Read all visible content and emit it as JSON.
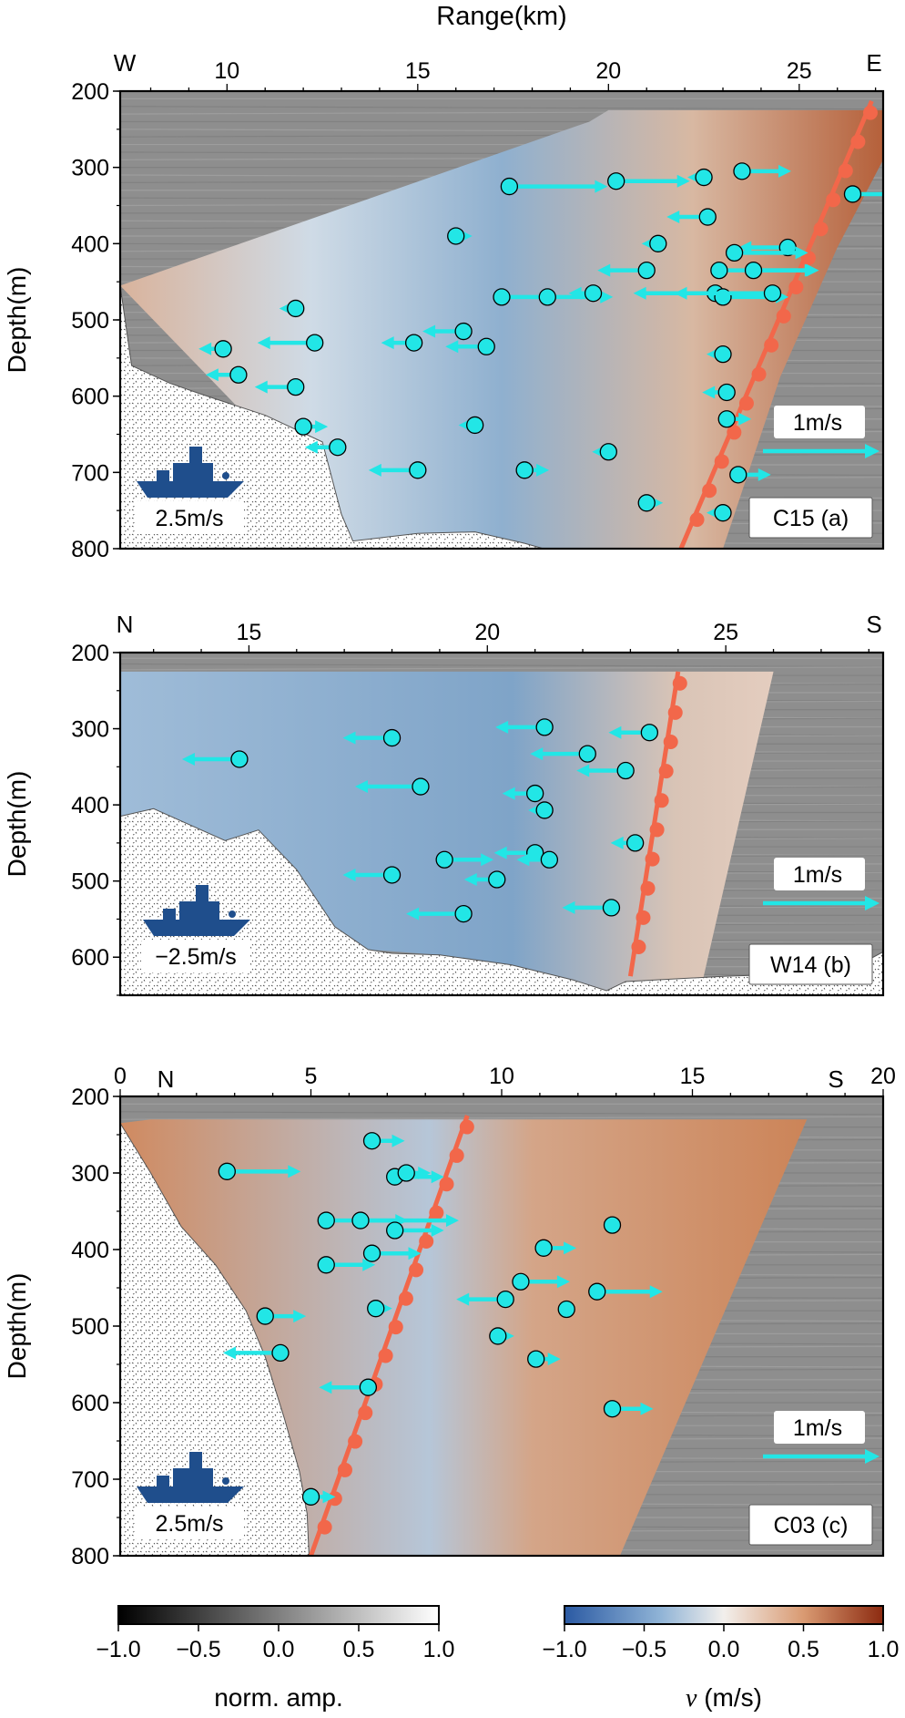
{
  "colors": {
    "arrow": "#22e6e6",
    "fault": "#f2674a",
    "boat": "#1f4e8c",
    "seafloor_fill": "#ffffff"
  },
  "chart_data": [
    {
      "id": "a",
      "type": "scatter",
      "x_axis_title": "Range(km)",
      "xlim": [
        7.2,
        27.2
      ],
      "xticks": [
        10,
        15,
        20,
        25
      ],
      "ylabel": "Depth(m)",
      "ylim": [
        800,
        200
      ],
      "yticks": [
        200,
        300,
        400,
        500,
        600,
        700,
        800
      ],
      "left_dir": "W",
      "right_dir": "E",
      "label": "C15 (a)",
      "scale_label": "1m/s",
      "boat_label": "2.5m/s",
      "data_overlay": "lr",
      "seafloor": [
        [
          7.2,
          455
        ],
        [
          7.5,
          560
        ],
        [
          8.5,
          583
        ],
        [
          9.3,
          597
        ],
        [
          11.0,
          625
        ],
        [
          12.5,
          660
        ],
        [
          13.0,
          755
        ],
        [
          13.3,
          790
        ],
        [
          15.0,
          780
        ],
        [
          16.5,
          778
        ],
        [
          17.8,
          793
        ],
        [
          18.3,
          800
        ],
        [
          7.2,
          800
        ]
      ],
      "coverage": [
        [
          7.2,
          455
        ],
        [
          19.5,
          240
        ],
        [
          20.0,
          225
        ],
        [
          27.2,
          225
        ],
        [
          27.2,
          290
        ],
        [
          26.0,
          405
        ],
        [
          24.5,
          575
        ],
        [
          23.0,
          800
        ],
        [
          18.3,
          800
        ],
        [
          13.3,
          790
        ],
        [
          13.0,
          755
        ]
      ],
      "fault": [
        [
          21.9,
          800
        ],
        [
          26.9,
          213
        ]
      ],
      "vectors": [
        [
          17.4,
          325,
          1.2
        ],
        [
          20.2,
          318,
          0.9
        ],
        [
          22.5,
          313,
          -0.2
        ],
        [
          23.5,
          305,
          0.6
        ],
        [
          22.6,
          365,
          -0.5
        ],
        [
          26.4,
          335,
          0.8
        ],
        [
          16.0,
          390,
          0.2
        ],
        [
          21.3,
          400,
          -0.2
        ],
        [
          24.7,
          405,
          -0.6
        ],
        [
          23.3,
          412,
          0.9
        ],
        [
          21.0,
          435,
          -0.6
        ],
        [
          22.9,
          435,
          1.2
        ],
        [
          23.8,
          435,
          0.8
        ],
        [
          17.2,
          470,
          0.7
        ],
        [
          18.4,
          470,
          0.8
        ],
        [
          19.6,
          465,
          -0.3
        ],
        [
          22.8,
          465,
          -1.0
        ],
        [
          23.0,
          470,
          0.8
        ],
        [
          24.3,
          465,
          -1.2
        ],
        [
          11.8,
          485,
          -0.2
        ],
        [
          16.2,
          515,
          -0.5
        ],
        [
          12.3,
          530,
          -0.7
        ],
        [
          14.9,
          530,
          -0.4
        ],
        [
          16.8,
          535,
          -0.5
        ],
        [
          23.0,
          545,
          -0.2
        ],
        [
          9.9,
          538,
          -0.3
        ],
        [
          10.3,
          572,
          -0.4
        ],
        [
          11.8,
          588,
          -0.5
        ],
        [
          23.1,
          595,
          -0.3
        ],
        [
          12.0,
          640,
          0.3
        ],
        [
          16.5,
          638,
          -0.2
        ],
        [
          23.1,
          630,
          0.3
        ],
        [
          12.9,
          667,
          -0.4
        ],
        [
          20.0,
          673,
          -0.2
        ],
        [
          15.0,
          697,
          -0.6
        ],
        [
          17.8,
          697,
          0.3
        ],
        [
          23.4,
          703,
          0.4
        ],
        [
          21.0,
          740,
          0.2
        ],
        [
          23.0,
          753,
          -0.2
        ]
      ]
    },
    {
      "id": "b",
      "type": "scatter",
      "xlim": [
        12.3,
        28.3
      ],
      "xticks": [
        15,
        20,
        25
      ],
      "ylabel": "Depth(m)",
      "ylim": [
        650,
        200
      ],
      "yticks": [
        200,
        300,
        400,
        500,
        600
      ],
      "left_dir": "N",
      "right_dir": "S",
      "label": "W14 (b)",
      "scale_label": "1m/s",
      "boat_label": "−2.5m/s",
      "data_overlay": "rl",
      "seafloor": [
        [
          12.3,
          415
        ],
        [
          13.0,
          405
        ],
        [
          14.5,
          447
        ],
        [
          15.2,
          433
        ],
        [
          16.0,
          485
        ],
        [
          16.8,
          560
        ],
        [
          17.5,
          590
        ],
        [
          18.0,
          595
        ],
        [
          19.0,
          597
        ],
        [
          20.5,
          610
        ],
        [
          21.8,
          630
        ],
        [
          22.5,
          644
        ],
        [
          22.9,
          632
        ],
        [
          25.0,
          625
        ],
        [
          27.5,
          620
        ],
        [
          28.3,
          593
        ],
        [
          28.3,
          650
        ],
        [
          12.3,
          650
        ]
      ],
      "coverage": [
        [
          12.3,
          225
        ],
        [
          26.0,
          225
        ],
        [
          24.5,
          635
        ],
        [
          22.9,
          632
        ],
        [
          22.5,
          644
        ],
        [
          21.8,
          630
        ],
        [
          20.5,
          610
        ],
        [
          19.0,
          597
        ],
        [
          17.5,
          590
        ],
        [
          16.8,
          560
        ],
        [
          16.0,
          485
        ],
        [
          15.2,
          433
        ],
        [
          14.5,
          447
        ],
        [
          13.0,
          405
        ],
        [
          12.3,
          415
        ]
      ],
      "fault": [
        [
          23.0,
          625
        ],
        [
          24.0,
          225
        ]
      ],
      "vectors": [
        [
          14.8,
          340,
          -0.7
        ],
        [
          18.0,
          312,
          -0.6
        ],
        [
          21.2,
          298,
          -0.6
        ],
        [
          23.4,
          305,
          -0.5
        ],
        [
          22.1,
          333,
          -0.7
        ],
        [
          22.9,
          355,
          -0.6
        ],
        [
          18.6,
          376,
          -0.8
        ],
        [
          21.0,
          385,
          -0.4
        ],
        [
          21.2,
          407,
          -0.2
        ],
        [
          21.0,
          463,
          -0.5
        ],
        [
          21.3,
          472,
          -0.4
        ],
        [
          23.1,
          450,
          -0.3
        ],
        [
          19.1,
          472,
          0.6
        ],
        [
          18.0,
          492,
          -0.6
        ],
        [
          20.2,
          498,
          -0.4
        ],
        [
          22.6,
          535,
          -0.6
        ],
        [
          19.5,
          543,
          -0.7
        ]
      ]
    },
    {
      "id": "c",
      "type": "scatter",
      "xlim": [
        0,
        20
      ],
      "xticks": [
        0,
        5,
        10,
        15,
        20
      ],
      "ylabel": "Depth(m)",
      "ylim": [
        800,
        200
      ],
      "yticks": [
        200,
        300,
        400,
        500,
        600,
        700,
        800
      ],
      "left_dir": "N",
      "right_dir": "S",
      "label": "C03 (c)",
      "scale_label": "1m/s",
      "boat_label": "2.5m/s",
      "data_overlay": "lr",
      "seafloor": [
        [
          0,
          235
        ],
        [
          0.8,
          300
        ],
        [
          1.6,
          370
        ],
        [
          2.5,
          420
        ],
        [
          3.3,
          480
        ],
        [
          3.8,
          540
        ],
        [
          4.3,
          620
        ],
        [
          4.7,
          690
        ],
        [
          4.9,
          745
        ],
        [
          4.95,
          800
        ],
        [
          0,
          800
        ]
      ],
      "coverage": [
        [
          0,
          235
        ],
        [
          0.8,
          230
        ],
        [
          18.0,
          230
        ],
        [
          13.1,
          800
        ],
        [
          4.95,
          800
        ],
        [
          4.9,
          745
        ],
        [
          4.7,
          690
        ],
        [
          4.3,
          620
        ],
        [
          3.8,
          540
        ],
        [
          3.3,
          480
        ],
        [
          2.5,
          420
        ],
        [
          1.6,
          370
        ],
        [
          0.8,
          300
        ]
      ],
      "fault": [
        [
          5.0,
          800
        ],
        [
          9.1,
          225
        ]
      ],
      "vectors": [
        [
          2.8,
          298,
          0.9
        ],
        [
          6.6,
          258,
          0.4
        ],
        [
          7.2,
          305,
          0.6
        ],
        [
          7.5,
          300,
          0.3
        ],
        [
          5.4,
          362,
          1.0
        ],
        [
          6.3,
          362,
          1.2
        ],
        [
          7.2,
          375,
          0.6
        ],
        [
          6.6,
          405,
          0.6
        ],
        [
          5.4,
          420,
          0.6
        ],
        [
          11.1,
          398,
          0.4
        ],
        [
          12.9,
          368,
          -0.1
        ],
        [
          10.5,
          442,
          0.6
        ],
        [
          12.5,
          455,
          0.8
        ],
        [
          10.1,
          465,
          -0.6
        ],
        [
          3.8,
          487,
          0.5
        ],
        [
          6.7,
          477,
          0.2
        ],
        [
          11.7,
          478,
          0.1
        ],
        [
          9.9,
          513,
          0.2
        ],
        [
          4.2,
          535,
          -0.7
        ],
        [
          6.5,
          580,
          -0.6
        ],
        [
          10.9,
          543,
          0.3
        ],
        [
          12.9,
          608,
          0.5
        ],
        [
          5.0,
          723,
          0.3
        ]
      ]
    }
  ],
  "colorbars": [
    {
      "id": "amp",
      "ticks": [
        "−1.0",
        "−0.5",
        "0.0",
        "0.5",
        "1.0"
      ],
      "label": "norm. amp."
    },
    {
      "id": "vel",
      "ticks": [
        "−1.0",
        "−0.5",
        "0.0",
        "0.5",
        "1.0"
      ],
      "label_symbol": "v",
      "label_rest": " (m/s)"
    }
  ]
}
